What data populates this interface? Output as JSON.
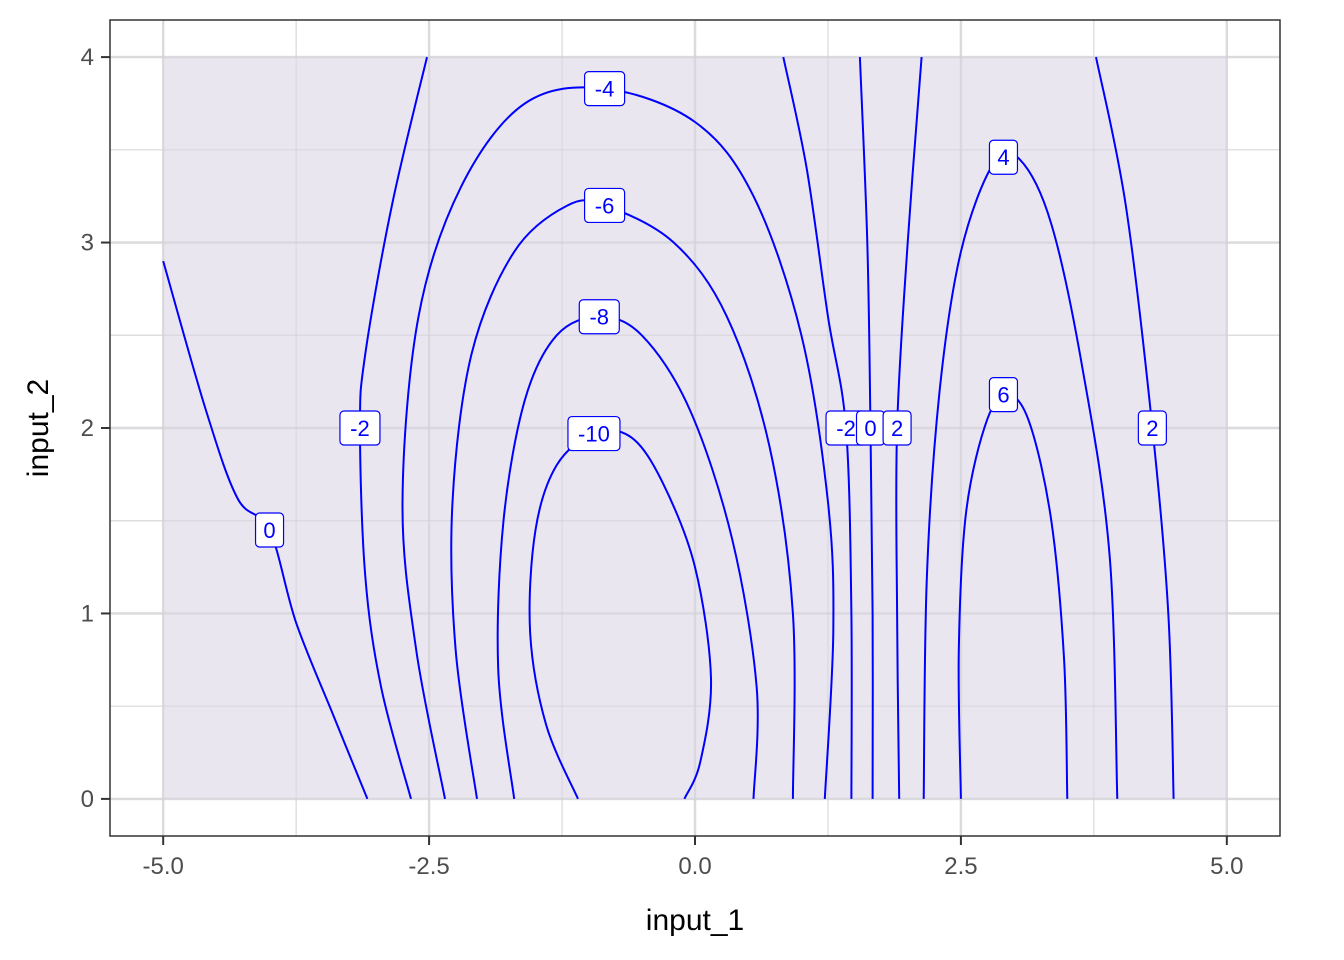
{
  "chart_data": {
    "type": "contour",
    "xlabel": "input_1",
    "ylabel": "input_2",
    "xlim": [
      -5.5,
      5.5
    ],
    "ylim": [
      -0.2,
      4.2
    ],
    "data_extent": {
      "x": [
        -5,
        5
      ],
      "y": [
        0,
        4
      ]
    },
    "xticks": [
      -5.0,
      -2.5,
      0.0,
      2.5,
      5.0
    ],
    "xtick_labels": [
      "-5.0",
      "-2.5",
      "0.0",
      "2.5",
      "5.0"
    ],
    "yticks": [
      0,
      1,
      2,
      3,
      4
    ],
    "ytick_labels": [
      "0",
      "1",
      "2",
      "3",
      "4"
    ],
    "grid": true,
    "colors": {
      "contour": "#0000ff",
      "fill": "#e8e4ee",
      "panel_border": "#333333"
    },
    "contours": [
      {
        "level": "0",
        "label_at": [
          -4.0,
          1.45
        ],
        "points": [
          [
            -5.0,
            2.9
          ],
          [
            -4.6,
            2.1
          ],
          [
            -4.3,
            1.62
          ],
          [
            -4.0,
            1.45
          ],
          [
            -3.75,
            0.95
          ],
          [
            -3.4,
            0.45
          ],
          [
            -3.08,
            0.0
          ]
        ]
      },
      {
        "level": "-2",
        "label_at": [
          -3.15,
          2.0
        ],
        "points": [
          [
            -2.52,
            4.0
          ],
          [
            -2.85,
            3.2
          ],
          [
            -3.1,
            2.4
          ],
          [
            -3.15,
            2.0
          ],
          [
            -3.1,
            1.2
          ],
          [
            -2.95,
            0.6
          ],
          [
            -2.67,
            0.0
          ]
        ]
      },
      {
        "level": "-4",
        "label_at": [
          -0.85,
          3.83
        ],
        "points": [
          [
            -2.35,
            0.0
          ],
          [
            -2.62,
            0.8
          ],
          [
            -2.75,
            1.6
          ],
          [
            -2.6,
            2.6
          ],
          [
            -2.2,
            3.3
          ],
          [
            -1.6,
            3.75
          ],
          [
            -0.85,
            3.83
          ],
          [
            0.0,
            3.65
          ],
          [
            0.55,
            3.25
          ],
          [
            1.0,
            2.5
          ],
          [
            1.25,
            1.6
          ],
          [
            1.3,
            0.9
          ],
          [
            1.22,
            0.0
          ]
        ]
      },
      {
        "level": "-6",
        "label_at": [
          -0.85,
          3.2
        ],
        "points": [
          [
            -2.05,
            0.0
          ],
          [
            -2.25,
            0.8
          ],
          [
            -2.28,
            1.6
          ],
          [
            -2.1,
            2.4
          ],
          [
            -1.7,
            2.95
          ],
          [
            -1.2,
            3.2
          ],
          [
            -0.85,
            3.2
          ],
          [
            -0.2,
            3.0
          ],
          [
            0.3,
            2.6
          ],
          [
            0.7,
            1.9
          ],
          [
            0.92,
            1.0
          ],
          [
            0.92,
            0.0
          ]
        ]
      },
      {
        "level": "-8",
        "label_at": [
          -0.9,
          2.6
        ],
        "points": [
          [
            -1.7,
            0.0
          ],
          [
            -1.85,
            0.7
          ],
          [
            -1.8,
            1.5
          ],
          [
            -1.6,
            2.15
          ],
          [
            -1.3,
            2.5
          ],
          [
            -0.9,
            2.6
          ],
          [
            -0.5,
            2.5
          ],
          [
            -0.05,
            2.1
          ],
          [
            0.35,
            1.4
          ],
          [
            0.58,
            0.6
          ],
          [
            0.55,
            0.0
          ]
        ]
      },
      {
        "level": "-10",
        "label_at": [
          -0.95,
          1.97
        ],
        "points": [
          [
            -1.1,
            0.0
          ],
          [
            -1.4,
            0.4
          ],
          [
            -1.55,
            0.9
          ],
          [
            -1.5,
            1.45
          ],
          [
            -1.3,
            1.8
          ],
          [
            -0.95,
            1.97
          ],
          [
            -0.6,
            1.95
          ],
          [
            -0.3,
            1.7
          ],
          [
            0.0,
            1.25
          ],
          [
            0.15,
            0.65
          ],
          [
            0.05,
            0.2
          ],
          [
            -0.1,
            0.0
          ]
        ]
      },
      {
        "level": "-2",
        "label_at": [
          1.42,
          2.0
        ],
        "points": [
          [
            0.83,
            4.0
          ],
          [
            1.05,
            3.4
          ],
          [
            1.25,
            2.6
          ],
          [
            1.42,
            2.0
          ],
          [
            1.47,
            1.0
          ],
          [
            1.47,
            0.0
          ]
        ]
      },
      {
        "level": "0",
        "label_at": [
          1.65,
          2.0
        ],
        "points": [
          [
            1.55,
            4.0
          ],
          [
            1.62,
            3.0
          ],
          [
            1.65,
            2.0
          ],
          [
            1.67,
            1.0
          ],
          [
            1.67,
            0.0
          ]
        ]
      },
      {
        "level": "2",
        "label_at": [
          1.9,
          2.0
        ],
        "points": [
          [
            2.13,
            4.0
          ],
          [
            2.0,
            3.0
          ],
          [
            1.9,
            2.0
          ],
          [
            1.9,
            1.0
          ],
          [
            1.92,
            0.0
          ]
        ]
      },
      {
        "level": "2",
        "label_at": [
          4.3,
          2.0
        ],
        "points": [
          [
            3.77,
            4.0
          ],
          [
            4.05,
            3.2
          ],
          [
            4.3,
            2.0
          ],
          [
            4.45,
            1.0
          ],
          [
            4.5,
            0.0
          ]
        ]
      },
      {
        "level": "4",
        "label_at": [
          2.9,
          3.46
        ],
        "points": [
          [
            2.15,
            0.0
          ],
          [
            2.18,
            1.2
          ],
          [
            2.3,
            2.2
          ],
          [
            2.5,
            2.95
          ],
          [
            2.8,
            3.42
          ],
          [
            3.05,
            3.45
          ],
          [
            3.35,
            3.1
          ],
          [
            3.65,
            2.3
          ],
          [
            3.9,
            1.3
          ],
          [
            3.97,
            0.0
          ]
        ]
      },
      {
        "level": "6",
        "label_at": [
          2.9,
          2.18
        ],
        "points": [
          [
            2.5,
            0.0
          ],
          [
            2.48,
            0.8
          ],
          [
            2.55,
            1.55
          ],
          [
            2.75,
            2.05
          ],
          [
            2.95,
            2.18
          ],
          [
            3.15,
            2.02
          ],
          [
            3.35,
            1.5
          ],
          [
            3.47,
            0.75
          ],
          [
            3.5,
            0.0
          ]
        ]
      }
    ]
  }
}
